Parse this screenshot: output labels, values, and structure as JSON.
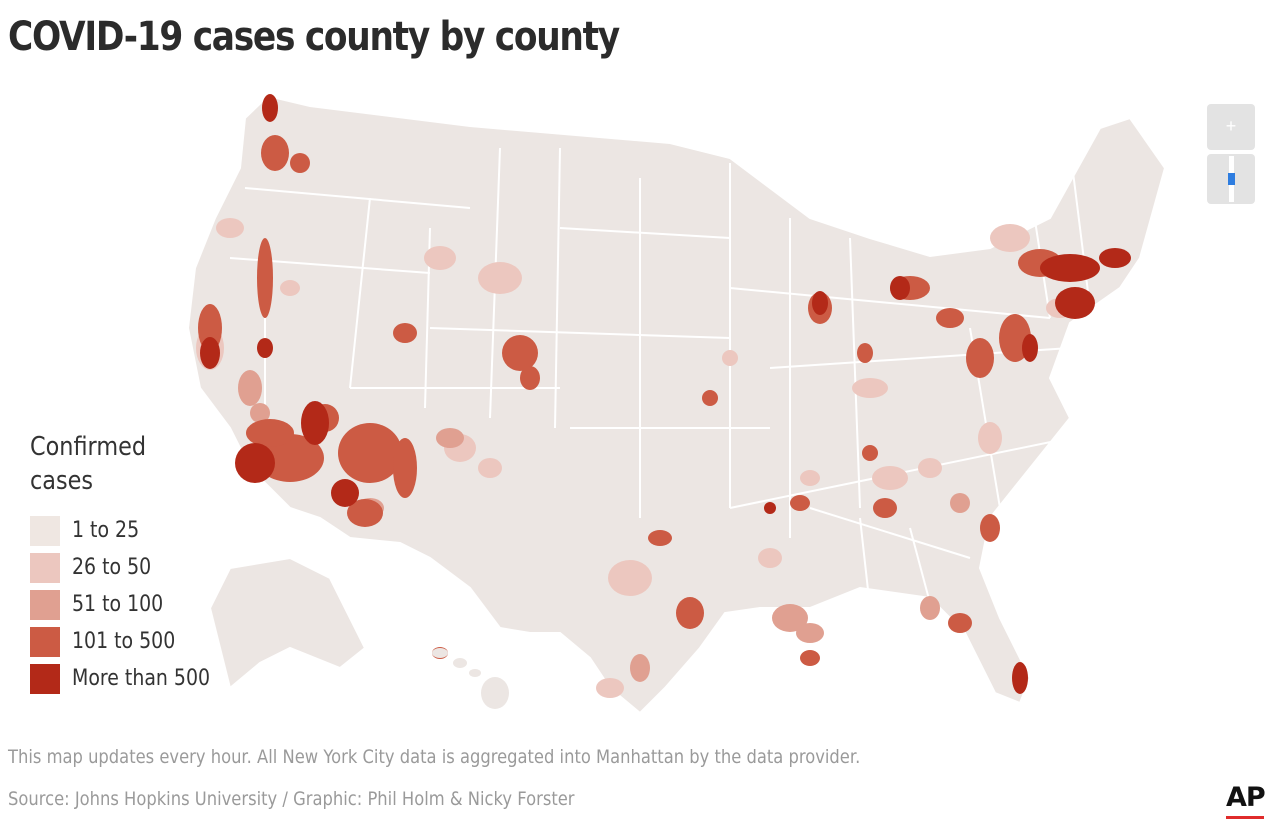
{
  "title": "COVID-19 cases county by county",
  "zoom": {
    "in_label": "+",
    "out_icon": "zoom-slider-icon",
    "accent": "#2e7de0",
    "level": 0.5
  },
  "legend": {
    "title": "Confirmed cases",
    "items": [
      {
        "label": "1 to 25",
        "color": "#efe7e2"
      },
      {
        "label": "26 to 50",
        "color": "#ecc7bf"
      },
      {
        "label": "51 to 100",
        "color": "#e0a091"
      },
      {
        "label": "101 to 500",
        "color": "#cc5b44"
      },
      {
        "label": "More than 500",
        "color": "#b32918"
      }
    ]
  },
  "map": {
    "base_color": "#ece6e3",
    "border_color": "#ffffff",
    "regions": [
      "contiguous-us",
      "alaska",
      "hawaii"
    ]
  },
  "footer": {
    "note": "This map updates every hour. All New York City data is aggregated into Manhattan by the data provider.",
    "source": "Source: Johns Hopkins University / Graphic: Phil Holm & Nicky Forster"
  },
  "logo": {
    "text": "AP",
    "bar_color": "#e02b2b"
  }
}
